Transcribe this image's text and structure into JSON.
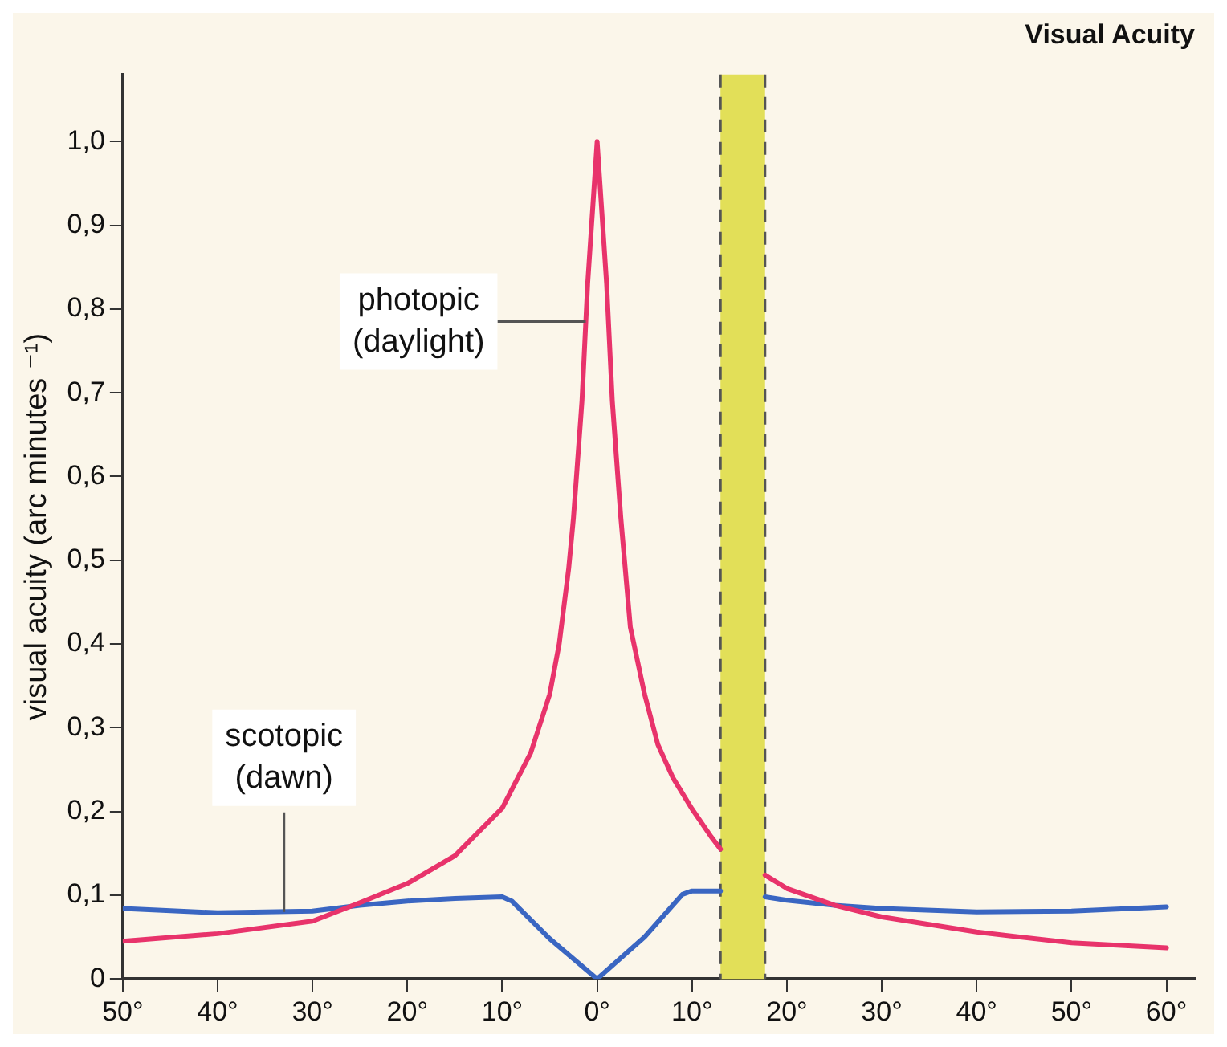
{
  "chart_data": {
    "type": "line",
    "title": "Visual Acuity",
    "ylabel": "visual acuity (arc minutes ⁻¹)",
    "xlim": [
      -50,
      63
    ],
    "ylim": [
      0,
      1.08
    ],
    "xticks": [
      {
        "value": -50,
        "label": "50°"
      },
      {
        "value": -40,
        "label": "40°"
      },
      {
        "value": -30,
        "label": "30°"
      },
      {
        "value": -20,
        "label": "20°"
      },
      {
        "value": -10,
        "label": "10°"
      },
      {
        "value": 0,
        "label": "0°"
      },
      {
        "value": 10,
        "label": "10°"
      },
      {
        "value": 20,
        "label": "20°"
      },
      {
        "value": 30,
        "label": "30°"
      },
      {
        "value": 40,
        "label": "40°"
      },
      {
        "value": 50,
        "label": "50°"
      },
      {
        "value": 60,
        "label": "60°"
      }
    ],
    "yticks": [
      0,
      {
        "value": 0.1,
        "label": "0,1"
      },
      {
        "value": 0.2,
        "label": "0,2"
      },
      {
        "value": 0.3,
        "label": "0,3"
      },
      {
        "value": 0.4,
        "label": "0,4"
      },
      {
        "value": 0.5,
        "label": "0,5"
      },
      {
        "value": 0.6,
        "label": "0,6"
      },
      {
        "value": 0.7,
        "label": "0,7"
      },
      {
        "value": 0.8,
        "label": "0,8"
      },
      {
        "value": 0.9,
        "label": "0,9"
      },
      {
        "value": 1.0,
        "label": "1,0"
      }
    ],
    "series": [
      {
        "color": "#e8336b",
        "x": [
          -50,
          -40,
          -30,
          -25,
          -20,
          -15,
          -10,
          -7,
          -5,
          -4,
          -3,
          -2.5,
          -1.6,
          -1,
          0,
          1,
          1.6,
          2.5,
          3.5,
          5,
          6.4,
          8,
          10,
          12,
          13,
          15,
          17.7,
          20,
          25,
          30,
          40,
          50,
          60
        ],
        "values": [
          0.045,
          0.054,
          0.069,
          0.091,
          0.114,
          0.147,
          0.204,
          0.27,
          0.34,
          0.4,
          0.49,
          0.55,
          0.69,
          0.83,
          1.0,
          0.83,
          0.69,
          0.55,
          0.42,
          0.34,
          0.28,
          0.24,
          0.203,
          0.17,
          0.155,
          null,
          0.124,
          0.108,
          0.088,
          0.074,
          0.056,
          0.043,
          0.037
        ]
      },
      {
        "color": "#3a66c2",
        "x": [
          -50,
          -40,
          -30,
          -25,
          -20,
          -15,
          -10,
          -9,
          -5,
          0,
          5,
          9,
          10,
          13,
          15,
          17.7,
          20,
          25,
          30,
          40,
          50,
          60
        ],
        "values": [
          0.084,
          0.079,
          0.081,
          0.088,
          0.093,
          0.096,
          0.098,
          0.093,
          0.048,
          0,
          0.05,
          0.101,
          0.105,
          0.105,
          null,
          0.098,
          0.094,
          0.088,
          0.084,
          0.08,
          0.081,
          0.086
        ]
      }
    ],
    "bands": [
      {
        "axis": "x",
        "from": 13,
        "to": 17.7,
        "color": "#e2df58"
      }
    ],
    "ref_lines": [
      {
        "axis": "x",
        "value": 13,
        "color": "#555555",
        "line_style": "dashed"
      },
      {
        "axis": "x",
        "value": 17.7,
        "color": "#555555",
        "line_style": "dashed"
      }
    ],
    "annotations": [
      {
        "text": "photopic (daylight)",
        "x": -1.2,
        "y": 0.785
      },
      {
        "text": "scotopic (dawn)",
        "x": -33,
        "y": 0.08
      }
    ],
    "grid": false,
    "legend": false
  }
}
